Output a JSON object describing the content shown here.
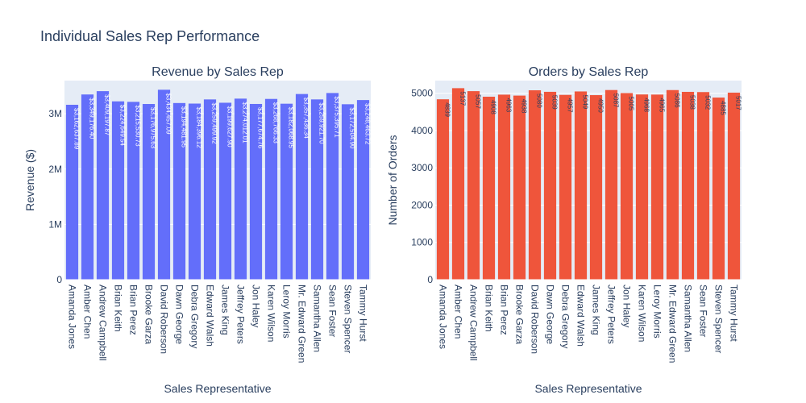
{
  "title": "Individual Sales Rep Performance",
  "colors": {
    "revenue": "#636efa",
    "orders": "#ef553b",
    "plot_bg": "#e5ecf6",
    "text": "#2a3f5f",
    "grid": "#ffffff"
  },
  "chart_data": [
    {
      "type": "bar",
      "title": "Revenue by Sales Rep",
      "xlabel": "Sales Representative",
      "ylabel": "Revenue ($)",
      "ylim": [
        0,
        3600000
      ],
      "yticks": [
        0,
        1000000,
        2000000,
        3000000
      ],
      "ytick_labels": [
        "0",
        "1M",
        "2M",
        "3M"
      ],
      "grid": true,
      "categories": [
        "Amanda Jones",
        "Amber Chen",
        "Andrew Campbell",
        "Brian Keith",
        "Brian Perez",
        "Brooke Garza",
        "David Roberson",
        "Dawn George",
        "Debra Gregory",
        "Edward Walsh",
        "James King",
        "Jeffrey Peters",
        "Jon Haley",
        "Karen Wilson",
        "Leroy Morris",
        "Mr. Edward Green",
        "Samantha Allen",
        "Sean Foster",
        "Steven Spencer",
        "Tammy Hurst"
      ],
      "values": [
        3162637.89,
        3349176.4,
        3409197.87,
        3224649.54,
        3215530.73,
        3176975.63,
        3434457.09,
        3194481.95,
        3184396.12,
        3259499.92,
        3199627.9,
        3274012.01,
        3177674.76,
        3268766.33,
        3182068.95,
        3357436.34,
        3259921.7,
        3375395.71,
        3172504.9,
        3248463.72
      ],
      "labels": [
        "$3,162,637.89",
        "$3,349,176.40",
        "$3,409,197.87",
        "$3,224,649.54",
        "$3,215,530.73",
        "$3,176,975.63",
        "$3,434,457.09",
        "$3,194,481.95",
        "$3,184,396.12",
        "$3,259,499.92",
        "$3,199,627.90",
        "$3,274,012.01",
        "$3,177,674.76",
        "$3,268,766.33",
        "$3,182,068.95",
        "$3,357,436.34",
        "$3,259,921.70",
        "$3,375,395.71",
        "$3,172,504.90",
        "$3,248,463.72"
      ]
    },
    {
      "type": "bar",
      "title": "Orders by Sales Rep",
      "xlabel": "Sales Representative",
      "ylabel": "Number of Orders",
      "ylim": [
        0,
        5340
      ],
      "yticks": [
        0,
        1000,
        2000,
        3000,
        4000,
        5000
      ],
      "ytick_labels": [
        "0",
        "1000",
        "2000",
        "3000",
        "4000",
        "5000"
      ],
      "grid": true,
      "categories": [
        "Amanda Jones",
        "Amber Chen",
        "Andrew Campbell",
        "Brian Keith",
        "Brian Perez",
        "Brooke Garza",
        "David Roberson",
        "Dawn George",
        "Debra Gregory",
        "Edward Walsh",
        "James King",
        "Jeffrey Peters",
        "Jon Haley",
        "Karen Wilson",
        "Leroy Morris",
        "Mr. Edward Green",
        "Samantha Allen",
        "Sean Foster",
        "Steven Spencer",
        "Tammy Hurst"
      ],
      "values": [
        4839,
        5137,
        5057,
        4908,
        4963,
        4938,
        5080,
        5039,
        4957,
        5049,
        4950,
        5087,
        5005,
        4968,
        4965,
        5086,
        5038,
        5032,
        4885,
        5017
      ],
      "labels": [
        "4839",
        "5137",
        "5057",
        "4908",
        "4963",
        "4938",
        "5080",
        "5039",
        "4957",
        "5049",
        "4950",
        "5087",
        "5005",
        "4968",
        "4965",
        "5086",
        "5038",
        "5032",
        "4885",
        "5017"
      ]
    }
  ]
}
